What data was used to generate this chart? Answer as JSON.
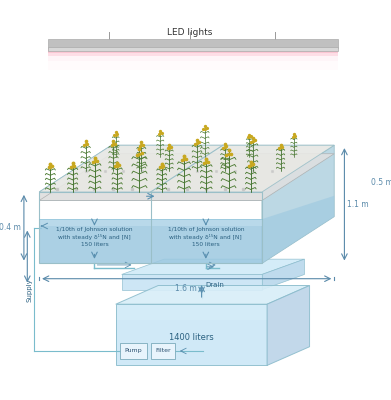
{
  "led_label": "LED lights",
  "solution_text": "1/10th of Johnson solution\nwith steady δ¹⁵N and [N]\n150 liters",
  "reservoir_label": "1400 liters",
  "dim_color": "#5a8aaa",
  "pump_label": "Pump",
  "filter_label": "Filter",
  "drain_label": "Drain",
  "supply_label": "Supply",
  "dim_11": "1.1 m",
  "dim_05": "0.5 m",
  "dim_04": "0.4 m",
  "dim_16": "1.6 m",
  "tray_water_top": "#c8e8f4",
  "tray_water_bot": "#7ab8d4",
  "tray_rim_color": "#d8d8d8",
  "res_color": "#c4e4f4",
  "res_top_color": "#d8eef8",
  "pipe_color": "#6aaccO",
  "dim_arrow_color": "#5a8aaa"
}
